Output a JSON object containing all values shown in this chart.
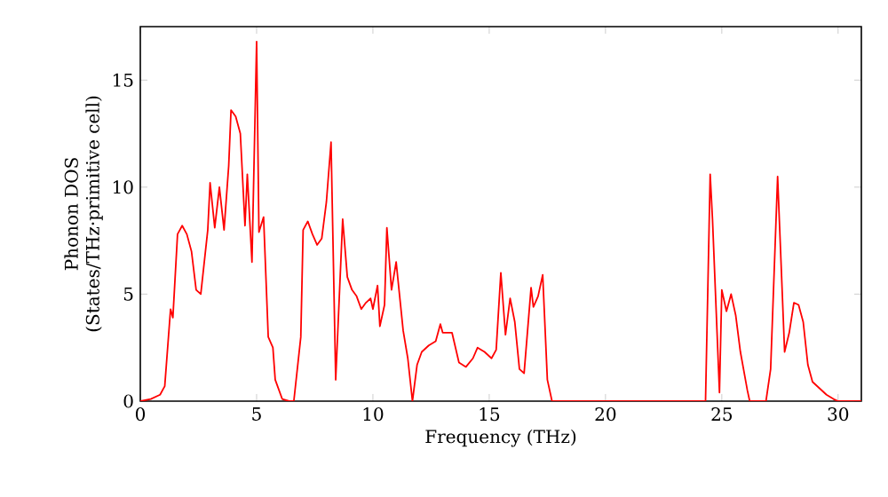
{
  "chart_data": {
    "type": "line",
    "xlabel": "Frequency (THz)",
    "ylabel": "Phonon DOS\n(States/THz·primitive cell)",
    "xlim": [
      0,
      31
    ],
    "ylim": [
      0,
      17.5
    ],
    "xticks": [
      0,
      5,
      10,
      15,
      20,
      25,
      30
    ],
    "yticks": [
      0,
      5,
      10,
      15
    ],
    "marker": "none",
    "line_style": "solid",
    "series": [
      {
        "color": "#ff0000",
        "x": [
          0,
          0.45,
          0.85,
          1.05,
          1.3,
          1.4,
          1.6,
          1.8,
          2.0,
          2.2,
          2.4,
          2.6,
          2.9,
          3.0,
          3.2,
          3.4,
          3.6,
          3.8,
          3.9,
          4.1,
          4.3,
          4.5,
          4.6,
          4.8,
          5.0,
          5.1,
          5.3,
          5.5,
          5.7,
          5.8,
          6.1,
          6.4,
          6.6,
          6.9,
          7.0,
          7.2,
          7.4,
          7.6,
          7.8,
          8.0,
          8.2,
          8.4,
          8.7,
          8.9,
          9.1,
          9.3,
          9.5,
          9.7,
          9.9,
          10.0,
          10.2,
          10.3,
          10.5,
          10.6,
          10.8,
          11.0,
          11.3,
          11.5,
          11.7,
          11.9,
          12.1,
          12.4,
          12.7,
          12.9,
          13.0,
          13.4,
          13.7,
          14.0,
          14.3,
          14.5,
          14.8,
          15.1,
          15.3,
          15.5,
          15.7,
          15.9,
          16.1,
          16.3,
          16.5,
          16.8,
          16.9,
          17.1,
          17.3,
          17.5,
          17.7,
          24.3,
          24.5,
          24.6,
          24.9,
          25.0,
          25.2,
          25.4,
          25.6,
          25.8,
          26.1,
          26.2,
          26.9,
          27.1,
          27.4,
          27.7,
          27.9,
          28.1,
          28.3,
          28.5,
          28.7,
          28.9,
          29.2,
          29.5,
          29.8,
          30.0,
          31.0
        ],
        "values": [
          0,
          0.1,
          0.3,
          0.7,
          4.3,
          3.9,
          7.8,
          8.2,
          7.8,
          7,
          5.2,
          5.0,
          8,
          10.2,
          8.1,
          10,
          8,
          11,
          13.6,
          13.3,
          12.5,
          8.2,
          10.6,
          6.5,
          16.8,
          7.9,
          8.6,
          3.0,
          2.5,
          1.0,
          0.1,
          0,
          0,
          3,
          8.0,
          8.4,
          7.8,
          7.3,
          7.6,
          9.3,
          12.1,
          1.0,
          8.5,
          5.8,
          5.2,
          4.9,
          4.3,
          4.6,
          4.8,
          4.3,
          5.4,
          3.5,
          4.5,
          8.1,
          5.2,
          6.5,
          3.3,
          2.0,
          0,
          1.7,
          2.3,
          2.6,
          2.8,
          3.6,
          3.2,
          3.2,
          1.8,
          1.6,
          2.0,
          2.5,
          2.3,
          2.0,
          2.4,
          6.0,
          3.1,
          4.8,
          3.7,
          1.5,
          1.3,
          5.3,
          4.4,
          4.9,
          5.9,
          1.0,
          0,
          0,
          10.6,
          8.5,
          0.4,
          5.2,
          4.2,
          5.0,
          4.0,
          2.3,
          0.5,
          0,
          0,
          1.5,
          10.5,
          2.3,
          3.2,
          4.6,
          4.5,
          3.7,
          1.7,
          0.9,
          0.6,
          0.3,
          0.1,
          0,
          0
        ]
      }
    ]
  }
}
